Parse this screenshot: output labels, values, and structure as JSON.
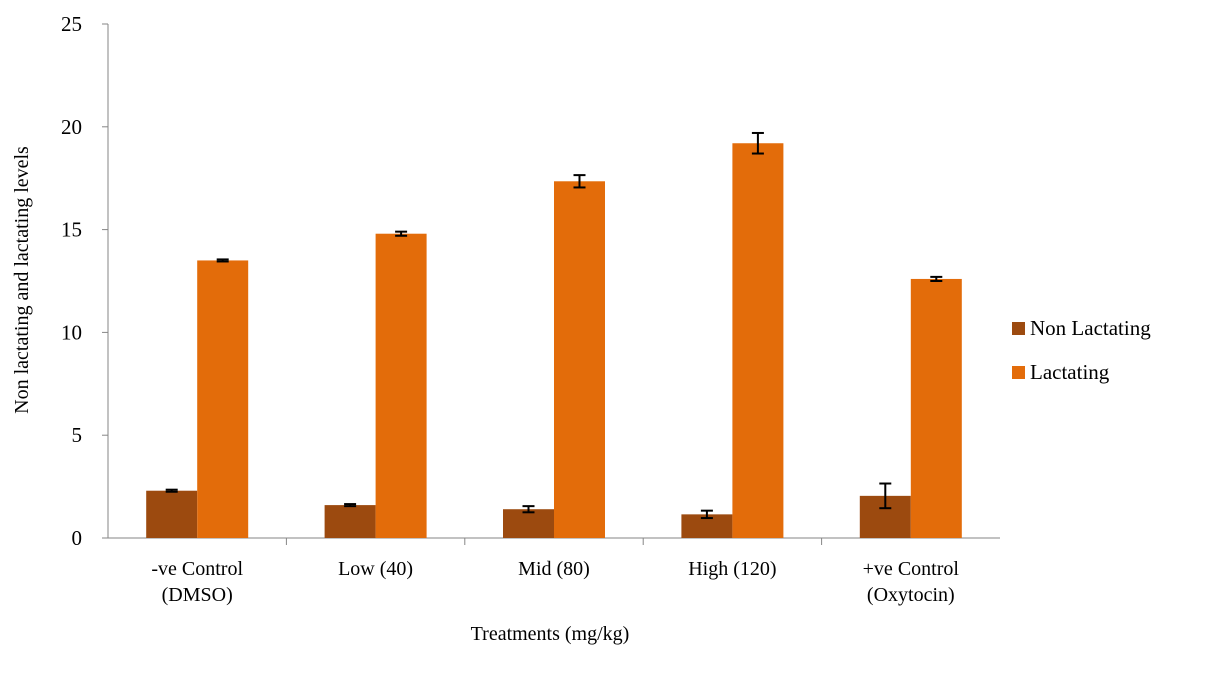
{
  "chart_data": {
    "type": "bar",
    "categories": [
      [
        "-ve Control",
        "(DMSO)"
      ],
      [
        "Low (40)"
      ],
      [
        "Mid (80)"
      ],
      [
        "High (120)"
      ],
      [
        "+ve Control",
        "(Oxytocin)"
      ]
    ],
    "series": [
      {
        "name": "Non Lactating",
        "color": "#9c4a0f",
        "values": [
          2.3,
          1.6,
          1.4,
          1.15,
          2.05
        ],
        "errors": [
          0.05,
          0.05,
          0.15,
          0.18,
          0.6
        ]
      },
      {
        "name": "Lactating",
        "color": "#e36c0a",
        "values": [
          13.5,
          14.8,
          17.35,
          19.2,
          12.6
        ],
        "errors": [
          0.05,
          0.1,
          0.3,
          0.5,
          0.1
        ]
      }
    ],
    "xlabel": "Treatments (mg/kg)",
    "ylabel": "Non lactating and lactating levels",
    "ylim": [
      0,
      25
    ],
    "yticks": [
      0,
      5,
      10,
      15,
      20,
      25
    ],
    "legend_position": "right",
    "grid": false
  }
}
